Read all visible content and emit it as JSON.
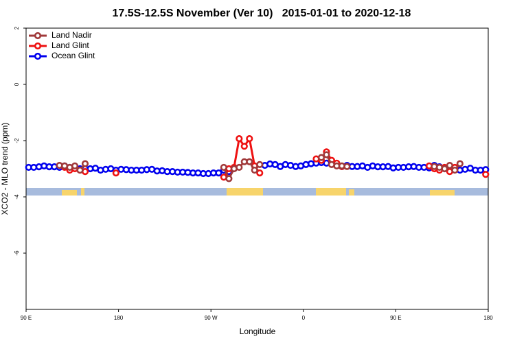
{
  "chart_data": {
    "type": "line",
    "title": "17.5S-12.5S November (Ver 10)   2015-01-01 to 2020-12-18",
    "x_label": "Longitude",
    "y_label": "XCO2 - MLO trend (ppm)",
    "xlim": [
      90,
      540
    ],
    "xticks": [
      {
        "value": 90,
        "label": "90 E"
      },
      180,
      {
        "value": 270,
        "label": "90 W"
      },
      {
        "value": 360,
        "label": "0"
      },
      {
        "value": 450,
        "label": "90 E"
      },
      {
        "value": 540,
        "label": "180"
      }
    ],
    "ylim": [
      -8,
      2
    ],
    "yticks": [
      2,
      0,
      -2,
      -4,
      -6
    ],
    "grid": false,
    "legend": "top-left",
    "x": [
      92.5,
      97.5,
      102.5,
      107.5,
      112.5,
      117.5,
      122.5,
      127.5,
      132.5,
      137.5,
      142.5,
      147.5,
      152.5,
      157.5,
      162.5,
      167.5,
      172.5,
      177.5,
      182.5,
      187.5,
      192.5,
      197.5,
      202.5,
      207.5,
      212.5,
      217.5,
      222.5,
      227.5,
      232.5,
      237.5,
      242.5,
      247.5,
      252.5,
      257.5,
      262.5,
      267.5,
      272.5,
      277.5,
      282.5,
      287.5,
      292.5,
      297.5,
      302.5,
      307.5,
      312.5,
      317.5,
      322.5,
      327.5,
      332.5,
      337.5,
      342.5,
      347.5,
      352.5,
      357.5,
      362.5,
      367.5,
      372.5,
      377.5,
      382.5,
      387.5,
      392.5,
      397.5,
      402.5,
      407.5,
      412.5,
      417.5,
      422.5,
      427.5,
      432.5,
      437.5,
      442.5,
      447.5,
      452.5,
      457.5,
      462.5,
      467.5,
      472.5,
      477.5,
      482.5,
      487.5,
      492.5,
      497.5,
      502.5,
      507.5,
      512.5,
      517.5,
      522.5,
      527.5,
      532.5,
      537.5
    ],
    "series": [
      {
        "name": "Land Nadir",
        "color": "#a0393a",
        "values": [
          null,
          null,
          null,
          null,
          null,
          null,
          -2.88,
          -2.9,
          -2.95,
          -2.9,
          -3.05,
          -2.82,
          null,
          null,
          null,
          null,
          null,
          null,
          null,
          null,
          null,
          null,
          null,
          null,
          null,
          null,
          null,
          null,
          null,
          null,
          null,
          null,
          null,
          null,
          null,
          null,
          null,
          null,
          -2.95,
          -3.35,
          -3.0,
          -2.95,
          -2.75,
          -2.75,
          -3.05,
          -2.85,
          null,
          null,
          null,
          null,
          null,
          null,
          null,
          null,
          null,
          null,
          null,
          -2.6,
          -2.5,
          -2.85,
          -2.9,
          -2.9,
          -2.92,
          null,
          null,
          null,
          null,
          null,
          null,
          null,
          null,
          null,
          null,
          null,
          null,
          null,
          null,
          null,
          null,
          -2.92,
          -2.95,
          -3.0,
          -2.88,
          -3.05,
          -2.82,
          null,
          null,
          null,
          null,
          null
        ]
      },
      {
        "name": "Land Glint",
        "color": "#ee1111",
        "values": [
          null,
          null,
          null,
          null,
          null,
          null,
          null,
          -2.95,
          -3.05,
          -3.0,
          -3.05,
          -3.1,
          null,
          null,
          null,
          null,
          null,
          -3.15,
          null,
          null,
          null,
          null,
          null,
          null,
          null,
          null,
          null,
          null,
          null,
          null,
          null,
          null,
          null,
          null,
          null,
          null,
          null,
          null,
          -3.3,
          -3.0,
          -2.95,
          -1.93,
          -2.2,
          -1.93,
          -2.9,
          -3.15,
          null,
          null,
          null,
          null,
          null,
          null,
          null,
          null,
          null,
          null,
          -2.65,
          -2.7,
          -2.4,
          -2.7,
          -2.8,
          -2.92,
          null,
          null,
          null,
          null,
          null,
          null,
          null,
          null,
          null,
          null,
          null,
          null,
          null,
          null,
          null,
          null,
          -2.9,
          -3.0,
          -3.05,
          -2.95,
          -3.1,
          -2.95,
          null,
          null,
          null,
          null,
          null,
          -3.2
        ]
      },
      {
        "name": "Ocean Glint",
        "color": "#0000ee",
        "values": [
          -2.95,
          -2.95,
          -2.93,
          -2.9,
          -2.93,
          -2.93,
          -2.95,
          -2.9,
          -2.95,
          -2.98,
          -3.0,
          -3.0,
          -3.0,
          -2.98,
          -3.05,
          -3.02,
          -3.0,
          -3.05,
          -3.02,
          -3.03,
          -3.05,
          -3.05,
          -3.05,
          -3.03,
          -3.02,
          -3.08,
          -3.07,
          -3.1,
          -3.1,
          -3.12,
          -3.12,
          -3.13,
          -3.15,
          -3.15,
          -3.17,
          -3.17,
          -3.15,
          -3.15,
          -3.05,
          -3.1,
          null,
          null,
          null,
          null,
          null,
          null,
          -2.88,
          -2.83,
          -2.85,
          -2.92,
          -2.85,
          -2.88,
          -2.92,
          -2.9,
          -2.85,
          -2.82,
          -2.8,
          -2.78,
          -2.8,
          -2.82,
          -2.88,
          -2.92,
          -2.88,
          -2.92,
          -2.92,
          -2.9,
          -2.95,
          -2.9,
          -2.93,
          -2.93,
          -2.92,
          -2.97,
          -2.95,
          -2.95,
          -2.93,
          -2.92,
          -2.95,
          -2.95,
          -2.97,
          -2.88,
          -2.93,
          -3.0,
          -2.98,
          -2.98,
          -3.05,
          -3.02,
          -2.98,
          -3.05,
          -3.05,
          -3.03
        ]
      }
    ]
  }
}
